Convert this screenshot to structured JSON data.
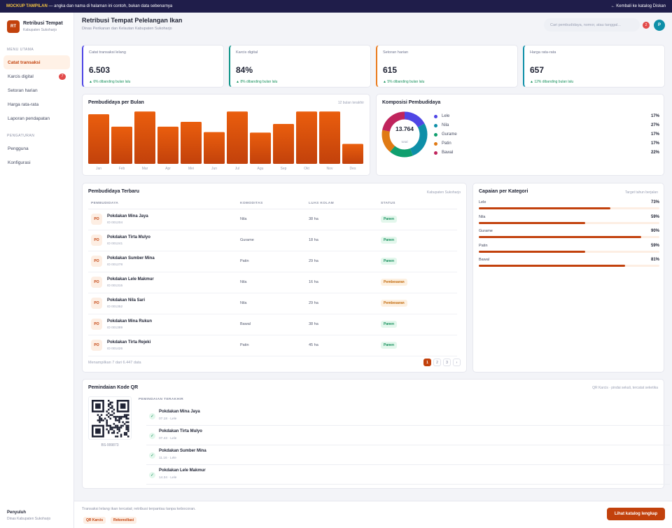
{
  "banner": {
    "tag": "MOCKUP TAMPILAN",
    "text": " — angka dan nama di halaman ini contoh, bukan data sebenarnya",
    "back_link": "← Kembali ke katalog Diskan"
  },
  "brand": {
    "logo": "RT",
    "title": "Retribusi Tempat",
    "subtitle": "Kabupaten Sukoharjo"
  },
  "sidebar": {
    "section_main": "MENU UTAMA",
    "items": [
      {
        "label": "Catat transaksi",
        "active": true,
        "badge": ""
      },
      {
        "label": "Karcis digital",
        "active": false,
        "badge": "7"
      },
      {
        "label": "Setoran harian",
        "active": false,
        "badge": ""
      },
      {
        "label": "Harga rata-rata",
        "active": false,
        "badge": ""
      },
      {
        "label": "Laporan pendapatan",
        "active": false,
        "badge": ""
      }
    ],
    "section_settings": "PENGATURAN",
    "settings_items": [
      {
        "label": "Pengguna"
      },
      {
        "label": "Konfigurasi"
      }
    ],
    "role": "Penyuluh",
    "office": "Dinas Kabupaten Sukoharjo"
  },
  "header": {
    "title": "Retribusi Tempat Pelelangan Ikan",
    "subtitle": "Dinas Perikanan dan Kelautan Kabupaten Sukoharjo",
    "search_placeholder": "Cari pembudidaya, nomor, atau tanggal...",
    "notif_count": "2",
    "avatar": "P"
  },
  "kpis": [
    {
      "label": "Catat transaksi lelang",
      "value": "6.503",
      "delta": "▲ 6% dibanding bulan lalu",
      "accent": "#4f46e5"
    },
    {
      "label": "Karcis digital",
      "value": "84%",
      "delta": "▲ 8% dibanding bulan lalu",
      "accent": "#0d9488"
    },
    {
      "label": "Setoran harian",
      "value": "615",
      "delta": "▲ 5% dibanding bulan lalu",
      "accent": "#ea7a1c"
    },
    {
      "label": "Harga rata-rata",
      "value": "657",
      "delta": "▲ 12% dibanding bulan lalu",
      "accent": "#0e8fa8"
    }
  ],
  "bar_card": {
    "title": "Pembudidaya per Bulan",
    "note": "12 bulan terakhir"
  },
  "donut_card": {
    "title": "Komposisi Pembudidaya",
    "center_value": "13.764",
    "center_label": "total"
  },
  "chart_data": [
    {
      "type": "bar",
      "categories": [
        "Jan",
        "Feb",
        "Mar",
        "Apr",
        "Mei",
        "Jun",
        "Jul",
        "Agu",
        "Sep",
        "Okt",
        "Nov",
        "Des"
      ],
      "values": [
        92,
        69,
        97,
        69,
        78,
        59,
        97,
        58,
        74,
        97,
        97,
        37
      ],
      "ylim": [
        0,
        100
      ],
      "color": "#e05a0c"
    },
    {
      "type": "pie",
      "labels": [
        "Lele",
        "Nila",
        "Gurame",
        "Patin",
        "Bawal"
      ],
      "values": [
        17,
        27,
        17,
        17,
        22
      ],
      "value_labels": [
        "17%",
        "27%",
        "17%",
        "17%",
        "22%"
      ],
      "colors": [
        "#4f46e5",
        "#0e8fa8",
        "#0f9f6e",
        "#e07a14",
        "#c0245c"
      ]
    }
  ],
  "table_card": {
    "title": "Pembudidaya Terbaru",
    "note": "Kabupaten Sukoharjo",
    "columns": [
      "PEMBUDIDAYA",
      "KOMODITAS",
      "LUAS KOLAM",
      "STATUS"
    ],
    "rows": [
      {
        "initials": "PO",
        "name": "Pokdakan Mina Jaya",
        "id": "ID 001204",
        "komoditas": "Nila",
        "luas": "38 ha",
        "status": "Panen"
      },
      {
        "initials": "PO",
        "name": "Pokdakan Tirta Mulyo",
        "id": "ID 001241",
        "komoditas": "Gurame",
        "luas": "18 ha",
        "status": "Panen"
      },
      {
        "initials": "PO",
        "name": "Pokdakan Sumber Mina",
        "id": "ID 001278",
        "komoditas": "Patin",
        "luas": "29 ha",
        "status": "Panen"
      },
      {
        "initials": "PO",
        "name": "Pokdakan Lele Makmur",
        "id": "ID 001315",
        "komoditas": "Nila",
        "luas": "16 ha",
        "status": "Pembesaran"
      },
      {
        "initials": "PO",
        "name": "Pokdakan Nila Sari",
        "id": "ID 001352",
        "komoditas": "Nila",
        "luas": "29 ha",
        "status": "Pembesaran"
      },
      {
        "initials": "PO",
        "name": "Pokdakan Mina Rukun",
        "id": "ID 001389",
        "komoditas": "Bawal",
        "luas": "38 ha",
        "status": "Panen"
      },
      {
        "initials": "PO",
        "name": "Pokdakan Tirta Rejeki",
        "id": "ID 001426",
        "komoditas": "Patin",
        "luas": "45 ha",
        "status": "Panen"
      }
    ],
    "showing": "Menampilkan 7 dari 6.447 data",
    "pages": [
      "1",
      "2",
      "3",
      "›"
    ]
  },
  "target_card": {
    "title": "Capaian per Kategori",
    "note": "Target tahun berjalan",
    "items": [
      {
        "label": "Lele",
        "percent": 73,
        "text": "73%"
      },
      {
        "label": "Nila",
        "percent": 59,
        "text": "59%"
      },
      {
        "label": "Gurame",
        "percent": 90,
        "text": "90%"
      },
      {
        "label": "Patin",
        "percent": 59,
        "text": "59%"
      },
      {
        "label": "Bawal",
        "percent": 81,
        "text": "81%"
      }
    ]
  },
  "qr_card": {
    "title": "Pemindaian Kode QR",
    "note": "QR Karcis · pindai sekali, tercatat seketika",
    "qr_code": "BS-999873",
    "list_title": "PEMINDAIAN TERAKHIR",
    "scans": [
      {
        "name": "Pokdakan Mina Jaya",
        "meta": "07.18 · Lele"
      },
      {
        "name": "Pokdakan Tirta Mulyo",
        "meta": "07.43 · Lele"
      },
      {
        "name": "Pokdakan Sumber Mina",
        "meta": "11.16 · Lele"
      },
      {
        "name": "Pokdakan Lele Makmur",
        "meta": "14.34 · Lele"
      }
    ]
  },
  "footer": {
    "text": "Transaksi lelang ikan tercatat; retribusi terpantau tanpa kebocoran.",
    "chips": [
      "QR Karcis",
      "Rekonsiliasi"
    ],
    "cta": "Lihat katalog lengkap"
  }
}
